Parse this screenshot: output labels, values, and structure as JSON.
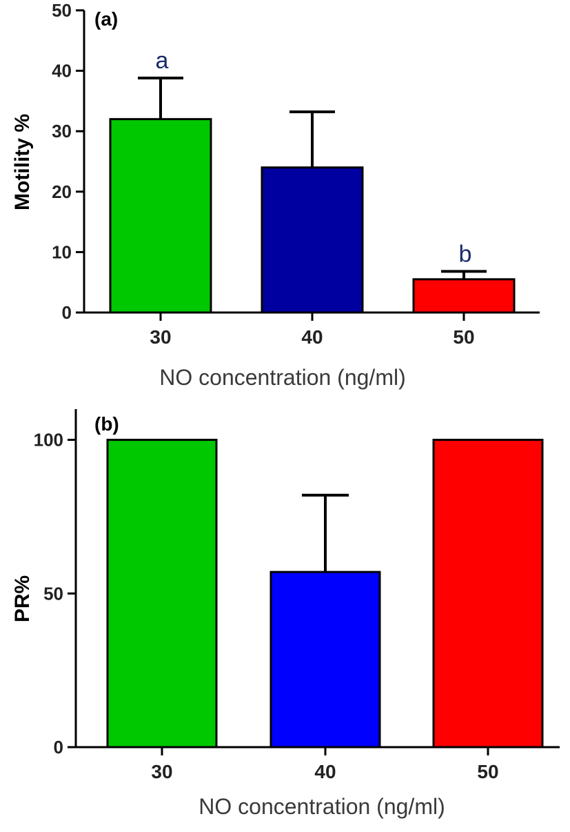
{
  "chart_data": [
    {
      "panel_label": "(a)",
      "type": "bar",
      "categories": [
        "30",
        "40",
        "50"
      ],
      "values": [
        32,
        24,
        5.5
      ],
      "errors": [
        6.8,
        9.2,
        1.3
      ],
      "colors": [
        "#00c800",
        "#0000a0",
        "#ff0000"
      ],
      "sig_labels": [
        "a",
        "",
        "b"
      ],
      "ylabel": "Motility %",
      "xlabel": "NO concentration (ng/ml)",
      "ylim": [
        0,
        50
      ],
      "yticks": [
        "0",
        "10",
        "20",
        "30",
        "40",
        "50"
      ]
    },
    {
      "panel_label": "(b)",
      "type": "bar",
      "categories": [
        "30",
        "40",
        "50"
      ],
      "values": [
        100,
        57,
        100
      ],
      "errors": [
        0,
        25,
        0
      ],
      "colors": [
        "#00c800",
        "#0000ff",
        "#ff0000"
      ],
      "sig_labels": [
        "",
        "",
        ""
      ],
      "ylabel": "PR%",
      "xlabel": "NO concentration (ng/ml)",
      "ylim": [
        0,
        110
      ],
      "yticks": [
        "0",
        "50",
        "100"
      ]
    }
  ]
}
